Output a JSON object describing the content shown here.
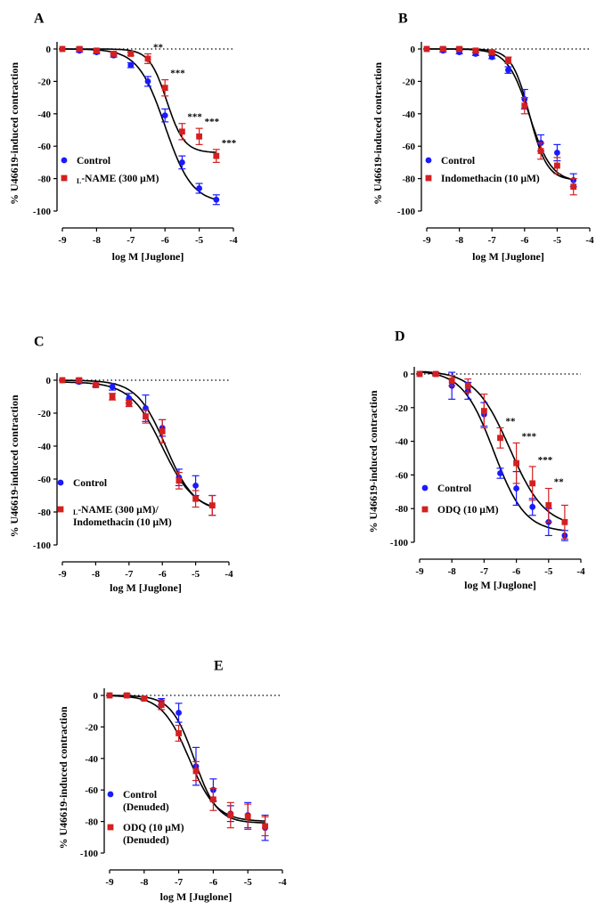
{
  "figure": {
    "y_axis_label": "% U46619-induced contraction",
    "x_axis_label": "log M [Juglone]"
  },
  "chart_data": [
    {
      "panel": "A",
      "type": "line",
      "xlim": [
        -9,
        -4
      ],
      "ylim": [
        -100,
        0
      ],
      "xticks": [
        "-9",
        "-8",
        "-7",
        "-6",
        "-5",
        "-4"
      ],
      "yticks": [
        "0",
        "-20",
        "-40",
        "-60",
        "-80",
        "-100"
      ],
      "x": [
        -9,
        -8.5,
        -8,
        -7.5,
        -7,
        -6.5,
        -6,
        -5.5,
        -5,
        -4.5
      ],
      "series": [
        {
          "name": "Control",
          "color": "#1a1aff",
          "marker": "circle",
          "values": [
            0,
            -1,
            -2,
            -4,
            -10,
            -20,
            -41,
            -70,
            -86,
            -93
          ],
          "errors": [
            0,
            1,
            1,
            1,
            1.5,
            3,
            4,
            4,
            3,
            3
          ]
        },
        {
          "name": "L-NAME (300 µM)",
          "name_small_caps": "L",
          "name_rest": "-NAME (300 µM)",
          "color": "#d42020",
          "marker": "square",
          "values": [
            0,
            0,
            -1,
            -3,
            -3,
            -6,
            -24,
            -51,
            -54,
            -66
          ],
          "errors": [
            0,
            1,
            1,
            1,
            1,
            3,
            5,
            5,
            5,
            4
          ]
        }
      ],
      "fit_curves": [
        {
          "name": "Control",
          "top": 0,
          "bottom": -95,
          "logEC50": -6.0,
          "hill": 1.1
        },
        {
          "name": "L-NAME (300 µM)",
          "top": 0,
          "bottom": -64,
          "logEC50": -5.95,
          "hill": 1.7
        }
      ],
      "significance": [
        {
          "x": -6.5,
          "label": "**"
        },
        {
          "x": -6,
          "label": "***"
        },
        {
          "x": -5.5,
          "label": "***"
        },
        {
          "x": -5,
          "label": "***"
        },
        {
          "x": -4.5,
          "label": "***"
        }
      ],
      "legend": [
        "Control",
        "L-NAME (300 µM)"
      ]
    },
    {
      "panel": "B",
      "type": "line",
      "xlim": [
        -9,
        -4
      ],
      "ylim": [
        -100,
        0
      ],
      "xticks": [
        "-9",
        "-8",
        "-7",
        "-6",
        "-5",
        "-4"
      ],
      "yticks": [
        "0",
        "-20",
        "-40",
        "-60",
        "-80",
        "-100"
      ],
      "x": [
        -9,
        -8.5,
        -8,
        -7.5,
        -7,
        -6.5,
        -6,
        -5.5,
        -5,
        -4.5
      ],
      "series": [
        {
          "name": "Control",
          "color": "#1a1aff",
          "marker": "circle",
          "values": [
            0,
            -1,
            -2,
            -3,
            -5,
            -13,
            -31,
            -58,
            -64,
            -81
          ],
          "errors": [
            0,
            1,
            1,
            1,
            1,
            2,
            6,
            5,
            5,
            4
          ]
        },
        {
          "name": "Indomethacin (10 µM)",
          "color": "#d42020",
          "marker": "square",
          "values": [
            0,
            0,
            0,
            -1,
            -2,
            -7,
            -35,
            -63,
            -72,
            -85
          ],
          "errors": [
            0,
            1,
            1,
            1,
            1,
            2,
            5,
            5,
            5,
            5
          ]
        }
      ],
      "fit_curves": [
        {
          "name": "Control",
          "top": 0,
          "bottom": -82,
          "logEC50": -5.85,
          "hill": 1.3
        },
        {
          "name": "Indomethacin (10 µM)",
          "top": 0,
          "bottom": -81,
          "logEC50": -5.85,
          "hill": 1.6
        }
      ],
      "significance": [],
      "legend": [
        "Control",
        "Indomethacin (10 µM)"
      ]
    },
    {
      "panel": "C",
      "type": "line",
      "xlim": [
        -9,
        -4
      ],
      "ylim": [
        -100,
        0
      ],
      "xticks": [
        "-9",
        "-8",
        "-7",
        "-6",
        "-5",
        "-4"
      ],
      "yticks": [
        "0",
        "-20",
        "-40",
        "-60",
        "-80",
        "-100"
      ],
      "x": [
        -9,
        -8.5,
        -8,
        -7.5,
        -7,
        -6.5,
        -6,
        -5.5,
        -5,
        -4.5
      ],
      "series": [
        {
          "name": "Control",
          "color": "#1a1aff",
          "marker": "circle",
          "values": [
            0,
            -1,
            -3,
            -4,
            -11,
            -17,
            -29,
            -59,
            -64,
            -76
          ],
          "errors": [
            0,
            1,
            1,
            2,
            3,
            8,
            5,
            5,
            6,
            6
          ]
        },
        {
          "name": "L-NAME (300 µM)/ Indomethacin (10 µM)",
          "name_small_caps": "L",
          "name_rest": "-NAME (300 µM)/",
          "name_line2": "Indomethacin (10 µM)",
          "color": "#d42020",
          "marker": "square",
          "values": [
            0,
            0,
            -3,
            -10,
            -14,
            -22,
            -31,
            -61,
            -72,
            -76
          ],
          "errors": [
            0,
            1,
            1,
            2,
            2,
            4,
            7,
            5,
            5,
            6
          ]
        }
      ],
      "fit_curves": [
        {
          "name": "Control",
          "top": 0,
          "bottom": -80,
          "logEC50": -5.9,
          "hill": 1.0
        },
        {
          "name": "L-NAME (300 µM)/ Indomethacin (10 µM)",
          "top": -1,
          "bottom": -80,
          "logEC50": -6.0,
          "hill": 0.9
        }
      ],
      "significance": [],
      "legend": [
        "Control",
        "L-NAME (300 µM)/ Indomethacin (10 µM)"
      ]
    },
    {
      "panel": "D",
      "type": "line",
      "xlim": [
        -9,
        -4
      ],
      "ylim": [
        -100,
        0
      ],
      "xticks": [
        "-9",
        "-8",
        "-7",
        "-6",
        "-5",
        "-4"
      ],
      "yticks": [
        "0",
        "-20",
        "-40",
        "-60",
        "-80",
        "-100"
      ],
      "x": [
        -9,
        -8.5,
        -8,
        -7.5,
        -7,
        -6.5,
        -6,
        -5.5,
        -5,
        -4.5
      ],
      "series": [
        {
          "name": "Control",
          "color": "#1a1aff",
          "marker": "circle",
          "values": [
            0,
            0,
            -7,
            -10,
            -24,
            -59,
            -68,
            -79,
            -88,
            -96
          ],
          "errors": [
            0,
            1,
            8,
            5,
            7,
            3,
            10,
            5,
            8,
            3
          ]
        },
        {
          "name": "ODQ (10 µM)",
          "color": "#d42020",
          "marker": "square",
          "values": [
            0,
            0,
            -4,
            -7,
            -22,
            -38,
            -53,
            -65,
            -78,
            -88
          ],
          "errors": [
            0,
            1,
            3,
            4,
            10,
            6,
            12,
            10,
            10,
            10
          ]
        }
      ],
      "fit_curves": [
        {
          "name": "Control",
          "top": 2,
          "bottom": -94,
          "logEC50": -6.7,
          "hill": 0.9
        },
        {
          "name": "ODQ (10 µM)",
          "top": 2,
          "bottom": -91,
          "logEC50": -6.2,
          "hill": 0.8
        }
      ],
      "significance": [
        {
          "x": -6.5,
          "label": "**"
        },
        {
          "x": -6,
          "label": "***"
        },
        {
          "x": -5.5,
          "label": "***"
        },
        {
          "x": -5,
          "label": "**"
        }
      ],
      "legend": [
        "Control",
        "ODQ (10 µM)"
      ]
    },
    {
      "panel": "E",
      "type": "line",
      "xlim": [
        -9,
        -4
      ],
      "ylim": [
        -100,
        0
      ],
      "xticks": [
        "-9",
        "-8",
        "-7",
        "-6",
        "-5",
        "-4"
      ],
      "yticks": [
        "0",
        "-20",
        "-40",
        "-60",
        "-80",
        "-100"
      ],
      "x": [
        -9,
        -8.5,
        -8,
        -7.5,
        -7,
        -6.5,
        -6,
        -5.5,
        -5,
        -4.5
      ],
      "series": [
        {
          "name": "Control (Denuded)",
          "name_line1": "Control",
          "name_line2": "(Denuded)",
          "color": "#1a1aff",
          "marker": "circle",
          "values": [
            0,
            0,
            -2,
            -4,
            -11,
            -45,
            -60,
            -75,
            -76,
            -84
          ],
          "errors": [
            0,
            1,
            1,
            2,
            6,
            12,
            7,
            5,
            8,
            8
          ]
        },
        {
          "name": "ODQ (10 µM) (Denuded)",
          "name_line1": "ODQ (10 µM)",
          "name_line2": "(Denuded)",
          "color": "#d42020",
          "marker": "square",
          "values": [
            0,
            0,
            -2,
            -6,
            -24,
            -48,
            -66,
            -76,
            -77,
            -83
          ],
          "errors": [
            0,
            1,
            1,
            3,
            5,
            6,
            7,
            8,
            8,
            6
          ]
        }
      ],
      "fit_curves": [
        {
          "name": "Control (Denuded)",
          "top": 0,
          "bottom": -81,
          "logEC50": -6.55,
          "hill": 1.3
        },
        {
          "name": "ODQ (10 µM) (Denuded)",
          "top": 0,
          "bottom": -80,
          "logEC50": -6.7,
          "hill": 1.1
        }
      ],
      "significance": [],
      "legend": [
        "Control (Denuded)",
        "ODQ (10 µM) (Denuded)"
      ]
    }
  ]
}
